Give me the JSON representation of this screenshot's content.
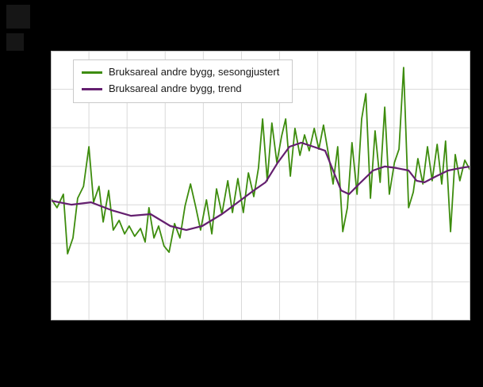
{
  "page": {
    "background": "#000000"
  },
  "chart_data": {
    "type": "line",
    "title": "",
    "xlabel": "",
    "ylabel": "",
    "axis_labels_visible": false,
    "ylim": [
      0,
      100
    ],
    "plot_background": "#ffffff",
    "grid": {
      "visible": true,
      "x_divisions": 11,
      "y_divisions": 7,
      "color": "#d9d9d9",
      "border_color": "#c0c0c0"
    },
    "legend_position": "top-left-inside",
    "series": [
      {
        "key": "sesongjustert-line",
        "name": "Bruksareal andre bygg, sesongjustert",
        "color": "#3d8c0d",
        "stroke_width": 1.8,
        "x": [
          0.0,
          0.015,
          0.03,
          0.04,
          0.053,
          0.064,
          0.078,
          0.091,
          0.102,
          0.115,
          0.125,
          0.138,
          0.149,
          0.163,
          0.176,
          0.187,
          0.2,
          0.214,
          0.225,
          0.234,
          0.246,
          0.257,
          0.27,
          0.282,
          0.295,
          0.308,
          0.32,
          0.333,
          0.346,
          0.357,
          0.371,
          0.384,
          0.395,
          0.408,
          0.422,
          0.433,
          0.446,
          0.459,
          0.471,
          0.484,
          0.495,
          0.505,
          0.516,
          0.527,
          0.539,
          0.55,
          0.56,
          0.571,
          0.582,
          0.594,
          0.605,
          0.616,
          0.628,
          0.639,
          0.65,
          0.662,
          0.673,
          0.684,
          0.696,
          0.707,
          0.718,
          0.73,
          0.741,
          0.751,
          0.762,
          0.773,
          0.785,
          0.796,
          0.807,
          0.819,
          0.83,
          0.841,
          0.853,
          0.864,
          0.875,
          0.887,
          0.898,
          0.909,
          0.921,
          0.932,
          0.941,
          0.953,
          0.964,
          0.975,
          0.987,
          1.0
        ],
        "values": [
          45.3,
          41.8,
          46.8,
          24.7,
          30.6,
          45.3,
          49.7,
          64.4,
          43.8,
          49.7,
          36.5,
          48.2,
          33.5,
          37.1,
          32.1,
          35.0,
          31.2,
          34.1,
          29.1,
          41.8,
          30.6,
          35.0,
          27.6,
          25.3,
          35.9,
          30.6,
          42.4,
          50.6,
          41.8,
          33.5,
          44.7,
          32.1,
          48.8,
          39.4,
          51.8,
          40.0,
          52.6,
          40.0,
          54.7,
          45.9,
          56.5,
          74.7,
          51.8,
          73.2,
          58.5,
          68.2,
          74.7,
          53.5,
          71.2,
          61.2,
          68.8,
          62.9,
          71.2,
          63.5,
          72.4,
          61.5,
          50.6,
          64.4,
          32.9,
          41.8,
          65.9,
          46.8,
          74.7,
          84.1,
          45.3,
          70.3,
          51.2,
          79.1,
          46.8,
          58.5,
          63.5,
          93.8,
          41.8,
          47.6,
          60.0,
          50.6,
          64.4,
          51.8,
          65.3,
          50.6,
          66.5,
          32.9,
          61.5,
          51.8,
          59.4,
          55.6
        ]
      },
      {
        "key": "trend-line",
        "name": "Bruksareal andre bygg, trend",
        "color": "#641f6f",
        "stroke_width": 2.2,
        "x": [
          0.0,
          0.049,
          0.096,
          0.144,
          0.191,
          0.238,
          0.285,
          0.323,
          0.361,
          0.408,
          0.446,
          0.484,
          0.512,
          0.541,
          0.569,
          0.597,
          0.626,
          0.654,
          0.673,
          0.692,
          0.711,
          0.739,
          0.768,
          0.796,
          0.824,
          0.853,
          0.872,
          0.891,
          0.919,
          0.947,
          0.976,
          1.0
        ],
        "values": [
          44.4,
          42.9,
          43.8,
          40.9,
          38.8,
          39.4,
          35.0,
          33.5,
          35.0,
          39.4,
          43.8,
          48.2,
          51.2,
          58.5,
          64.4,
          65.9,
          64.4,
          62.9,
          55.6,
          48.2,
          46.8,
          51.2,
          55.6,
          57.1,
          56.5,
          55.6,
          51.8,
          51.2,
          53.5,
          55.6,
          56.5,
          57.1
        ]
      }
    ]
  }
}
